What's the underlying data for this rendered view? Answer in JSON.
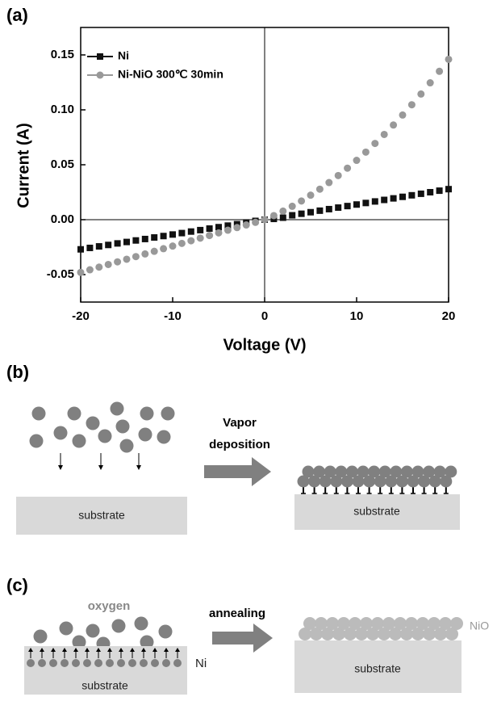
{
  "chart_data": {
    "type": "scatter",
    "panel_label": "(a)",
    "x_label": "Voltage (V)",
    "y_label": "Current (A)",
    "x": [
      -20,
      -19,
      -18,
      -17,
      -16,
      -15,
      -14,
      -13,
      -12,
      -11,
      -10,
      -9,
      -8,
      -7,
      -6,
      -5,
      -4,
      -3,
      -2,
      -1,
      0,
      1,
      2,
      3,
      4,
      5,
      6,
      7,
      8,
      9,
      10,
      11,
      12,
      13,
      14,
      15,
      16,
      17,
      18,
      19,
      20
    ],
    "series": [
      {
        "name": "Ni",
        "color": "#111111",
        "marker": "square",
        "values": [
          -0.027,
          -0.0257,
          -0.0243,
          -0.023,
          -0.0216,
          -0.0203,
          -0.0189,
          -0.0176,
          -0.0162,
          -0.0149,
          -0.0135,
          -0.0122,
          -0.0108,
          -0.0095,
          -0.0081,
          -0.0068,
          -0.0054,
          -0.0041,
          -0.0025,
          -0.0011,
          0,
          0.0007,
          0.0018,
          0.004,
          0.0054,
          0.0068,
          0.0082,
          0.0096,
          0.011,
          0.0124,
          0.0138,
          0.0152,
          0.0166,
          0.018,
          0.0194,
          0.0208,
          0.0222,
          0.0236,
          0.025,
          0.0264,
          0.0278
        ]
      },
      {
        "name": "Ni-NiO 300℃ 30min",
        "color": "#999999",
        "marker": "circle",
        "values": [
          -0.048,
          -0.0456,
          -0.0432,
          -0.0408,
          -0.0384,
          -0.036,
          -0.0336,
          -0.0312,
          -0.0288,
          -0.0264,
          -0.024,
          -0.0216,
          -0.0192,
          -0.0168,
          -0.0144,
          -0.012,
          -0.0096,
          -0.0072,
          -0.0048,
          -0.0024,
          0,
          0.0037,
          0.0078,
          0.0122,
          0.017,
          0.0223,
          0.0278,
          0.0338,
          0.0402,
          0.0469,
          0.054,
          0.0615,
          0.0694,
          0.0776,
          0.0862,
          0.0953,
          0.1046,
          0.1144,
          0.1246,
          0.1351,
          0.146
        ]
      }
    ],
    "xlim": [
      -20,
      20
    ],
    "xticks": [
      -20,
      -10,
      0,
      10,
      20
    ],
    "ylim": [
      -0.075,
      0.175
    ],
    "yticks": [
      -0.05,
      {
        "value": 0,
        "label": "0.00"
      },
      0.05,
      {
        "value": 0.1,
        "label": "0.10"
      },
      0.15
    ],
    "legend": "upper left"
  },
  "panels": [
    {
      "label": "(b)",
      "arrow_label": [
        "Vapor",
        "deposition"
      ],
      "substrate_left": "substrate",
      "substrate_right": "substrate"
    },
    {
      "label": "(c)",
      "gas": "oxygen",
      "arrow_label": "annealing",
      "substrate_left": "substrate",
      "substrate_right": "substrate",
      "layer_left": "Ni",
      "layer_right": "NiO"
    }
  ]
}
